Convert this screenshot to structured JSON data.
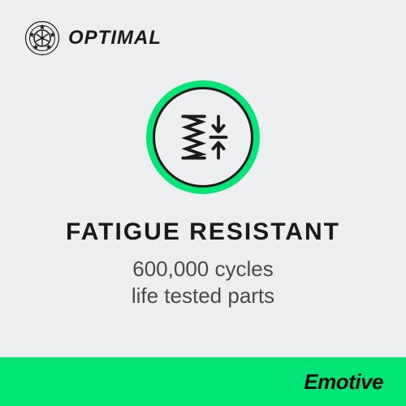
{
  "colors": {
    "background": "#eceef0",
    "text_dark": "#1a1a1a",
    "text_mid": "#4a4a4a",
    "accent_green": "#00e676",
    "icon_ring_outer": "#00e676",
    "icon_bg": "#eceef0",
    "footer_bg": "#00e676",
    "footer_text": "#0a0a0a",
    "seal_stroke": "#1a1a1a"
  },
  "brand": {
    "name": "OPTIMAL",
    "seal_icon": "optimal-seal"
  },
  "feature": {
    "icon": "spring-compression-icon",
    "headline": "FATIGUE RESISTANT",
    "sub_line1": "600,000 cycles",
    "sub_line2": "life tested parts"
  },
  "footer": {
    "brand": "Emotive"
  },
  "typography": {
    "brand_fontsize": 24,
    "headline_fontsize": 30,
    "sub_fontsize": 26,
    "footer_fontsize": 26
  },
  "icon_circle": {
    "outer_diameter": 140,
    "ring_width": 8,
    "inner_border_width": 3
  }
}
